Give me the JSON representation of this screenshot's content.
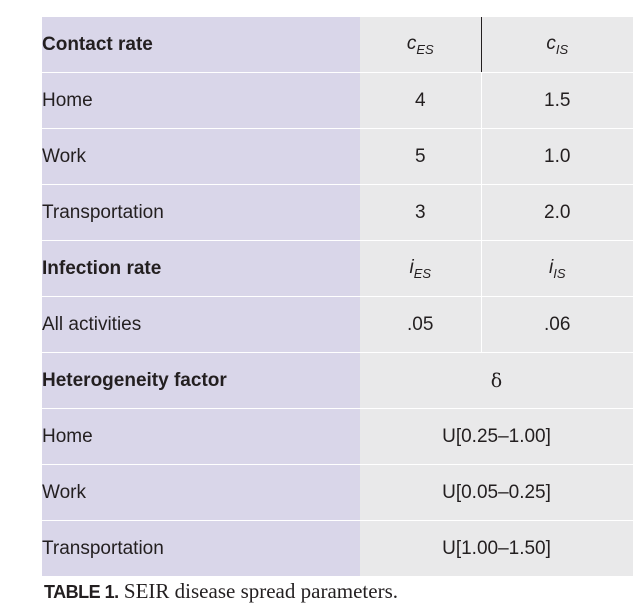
{
  "table": {
    "contact_header": {
      "label": "Contact rate",
      "col1_main": "c",
      "col1_sub": "ES",
      "col2_main": "c",
      "col2_sub": "IS"
    },
    "contact_rows": [
      {
        "label": "Home",
        "v1": "4",
        "v2": "1.5"
      },
      {
        "label": "Work",
        "v1": "5",
        "v2": "1.0"
      },
      {
        "label": "Transportation",
        "v1": "3",
        "v2": "2.0"
      }
    ],
    "infection_header": {
      "label": "Infection rate",
      "col1_main": "i",
      "col1_sub": "ES",
      "col2_main": "i",
      "col2_sub": "IS"
    },
    "infection_rows": [
      {
        "label": "All activities",
        "v1": ".05",
        "v2": ".06"
      }
    ],
    "heterogeneity_header": {
      "label": "Heterogeneity factor",
      "symbol": "δ"
    },
    "heterogeneity_rows": [
      {
        "label": "Home",
        "value": "U[0.25–1.00]"
      },
      {
        "label": "Work",
        "value": "U[0.05–0.25]"
      },
      {
        "label": "Transportation",
        "value": "U[1.00–1.50]"
      }
    ]
  },
  "caption": {
    "label": "TABLE 1.",
    "text": " SEIR disease spread parameters."
  }
}
